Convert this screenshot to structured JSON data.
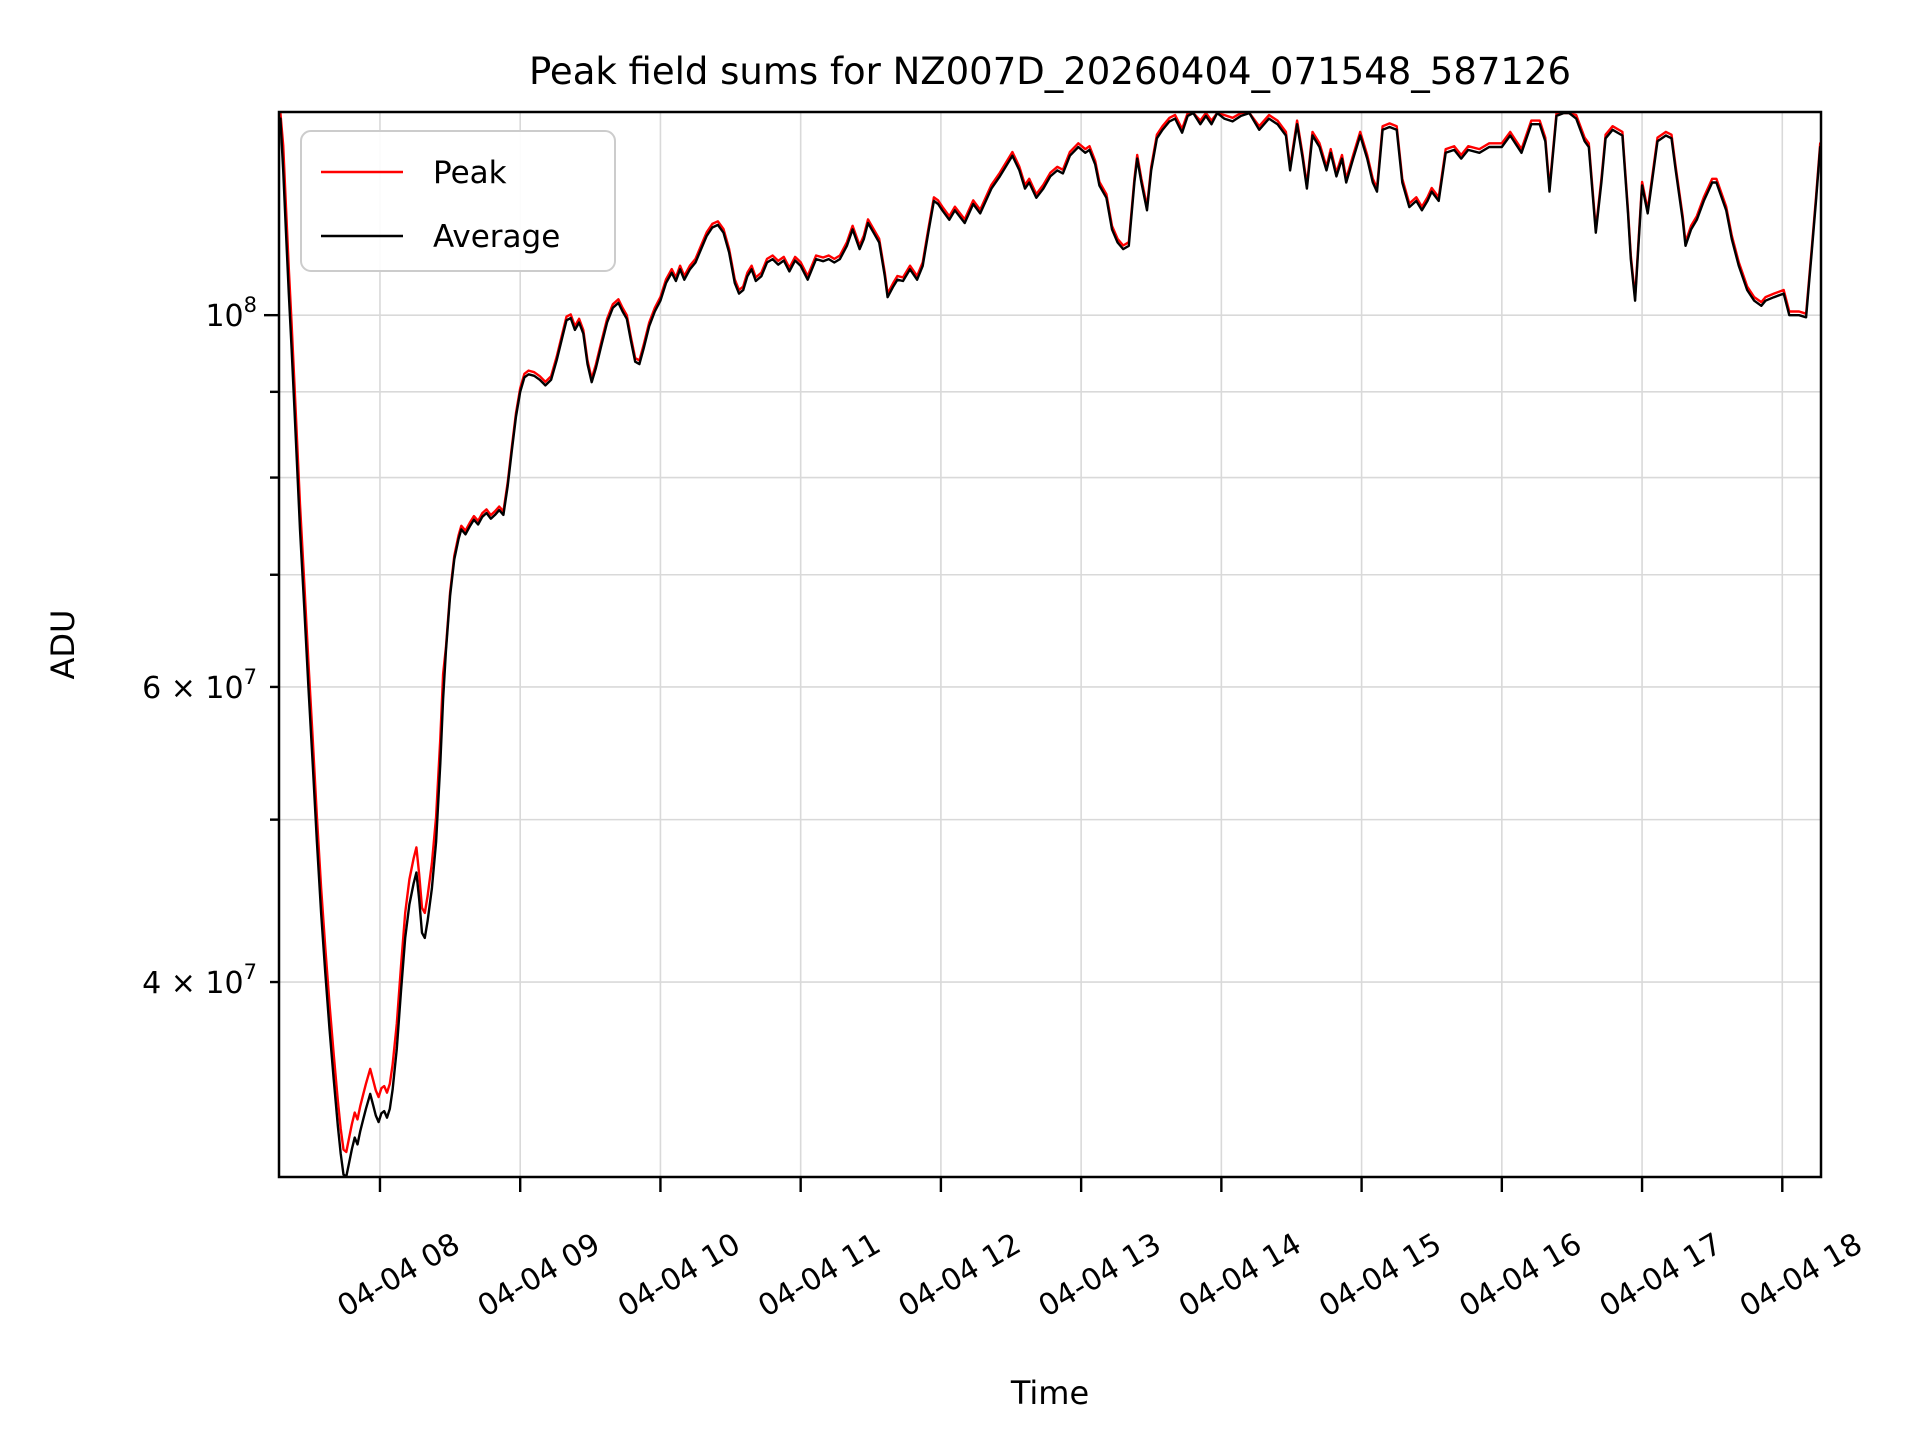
{
  "title": "Peak field sums for NZ007D_20260404_071548_587126",
  "axes": {
    "xlabel": "Time",
    "ylabel": "ADU",
    "x_ticks": [
      {
        "hour": 8,
        "label": "04-04 08"
      },
      {
        "hour": 9,
        "label": "04-04 09"
      },
      {
        "hour": 10,
        "label": "04-04 10"
      },
      {
        "hour": 11,
        "label": "04-04 11"
      },
      {
        "hour": 12,
        "label": "04-04 12"
      },
      {
        "hour": 13,
        "label": "04-04 13"
      },
      {
        "hour": 14,
        "label": "04-04 14"
      },
      {
        "hour": 15,
        "label": "04-04 15"
      },
      {
        "hour": 16,
        "label": "04-04 16"
      },
      {
        "hour": 17,
        "label": "04-04 17"
      },
      {
        "hour": 18,
        "label": "04-04 18"
      }
    ],
    "y_ticks": [
      {
        "value_millions": 100,
        "major": true,
        "label_base": "10",
        "label_exp": "8"
      },
      {
        "value_millions": 90,
        "major": false,
        "label_base": "",
        "label_exp": ""
      },
      {
        "value_millions": 80,
        "major": false,
        "label_base": "",
        "label_exp": ""
      },
      {
        "value_millions": 70,
        "major": false,
        "label_base": "",
        "label_exp": ""
      },
      {
        "value_millions": 60,
        "major": false,
        "label_base": "6 × 10",
        "label_exp": "7"
      },
      {
        "value_millions": 50,
        "major": false,
        "label_base": "",
        "label_exp": ""
      },
      {
        "value_millions": 40,
        "major": false,
        "label_base": "4 × 10",
        "label_exp": "7"
      }
    ]
  },
  "legend": {
    "entries": [
      {
        "label": "Peak",
        "color": "#ff0000"
      },
      {
        "label": "Average",
        "color": "#000000"
      }
    ]
  },
  "colors": {
    "grid": "#d9d9d9",
    "spine": "#000000",
    "background": "#ffffff",
    "peak_line": "#ff0000",
    "average_line": "#000000"
  },
  "chart_data": {
    "type": "line",
    "title": "Peak field sums for NZ007D_20260404_071548_587126",
    "xlabel": "Time",
    "ylabel": "ADU",
    "y_scale": "log",
    "x_unit": "decimal hours on 2026-04-04",
    "values_unit": "millions of ADU (1e6)",
    "xlim_hours": [
      7.28,
      18.276
    ],
    "ylim_adu": [
      30600000,
      132200000
    ],
    "grid": "both, light gray",
    "legend_position": "upper left",
    "series": [
      {
        "name": "Peak",
        "color": "#ff0000",
        "derivation": "Equals Average scaled by factor_default; scaled by factor_dip during the morning minimum where the red line is visible beside the black one",
        "factor_default": 1.005,
        "factor_dip": 1.035,
        "dip_range_hours": [
          7.29,
          8.45
        ]
      },
      {
        "name": "Average",
        "color": "#000000",
        "points_t_hours_v_millions": [
          [
            7.29,
            131
          ],
          [
            7.31,
            122
          ],
          [
            7.33,
            112
          ],
          [
            7.35,
            103
          ],
          [
            7.37,
            95.5
          ],
          [
            7.39,
            88
          ],
          [
            7.41,
            81
          ],
          [
            7.43,
            74.5
          ],
          [
            7.46,
            67
          ],
          [
            7.49,
            60
          ],
          [
            7.52,
            54
          ],
          [
            7.55,
            48.5
          ],
          [
            7.58,
            44
          ],
          [
            7.61,
            40.5
          ],
          [
            7.64,
            37.5
          ],
          [
            7.67,
            35
          ],
          [
            7.7,
            32.8
          ],
          [
            7.72,
            31.6
          ],
          [
            7.74,
            30.7
          ],
          [
            7.76,
            30.6
          ],
          [
            7.78,
            31.2
          ],
          [
            7.8,
            31.8
          ],
          [
            7.82,
            32.3
          ],
          [
            7.84,
            32
          ],
          [
            7.86,
            32.6
          ],
          [
            7.88,
            33.1
          ],
          [
            7.9,
            33.6
          ],
          [
            7.93,
            34.3
          ],
          [
            7.95,
            33.8
          ],
          [
            7.97,
            33.3
          ],
          [
            7.99,
            33
          ],
          [
            8.01,
            33.4
          ],
          [
            8.03,
            33.5
          ],
          [
            8.05,
            33.2
          ],
          [
            8.07,
            33.6
          ],
          [
            8.09,
            34.5
          ],
          [
            8.12,
            36.5
          ],
          [
            8.15,
            39.5
          ],
          [
            8.18,
            42.5
          ],
          [
            8.21,
            44.5
          ],
          [
            8.24,
            45.8
          ],
          [
            8.26,
            46.5
          ],
          [
            8.28,
            44.8
          ],
          [
            8.3,
            42.8
          ],
          [
            8.32,
            42.5
          ],
          [
            8.34,
            43.5
          ],
          [
            8.37,
            45.5
          ],
          [
            8.4,
            48.5
          ],
          [
            8.43,
            54
          ],
          [
            8.45,
            59
          ],
          [
            8.47,
            63
          ],
          [
            8.5,
            68
          ],
          [
            8.53,
            71.5
          ],
          [
            8.56,
            73.5
          ],
          [
            8.58,
            74.5
          ],
          [
            8.61,
            74
          ],
          [
            8.64,
            74.8
          ],
          [
            8.67,
            75.5
          ],
          [
            8.7,
            75
          ],
          [
            8.73,
            75.8
          ],
          [
            8.76,
            76.2
          ],
          [
            8.79,
            75.6
          ],
          [
            8.82,
            76
          ],
          [
            8.85,
            76.5
          ],
          [
            8.88,
            76
          ],
          [
            8.91,
            79
          ],
          [
            8.94,
            83
          ],
          [
            8.97,
            87
          ],
          [
            9,
            90
          ],
          [
            9.03,
            91.8
          ],
          [
            9.06,
            92.2
          ],
          [
            9.1,
            92
          ],
          [
            9.14,
            91.5
          ],
          [
            9.18,
            90.8
          ],
          [
            9.22,
            91.5
          ],
          [
            9.26,
            94
          ],
          [
            9.3,
            97
          ],
          [
            9.33,
            99.3
          ],
          [
            9.36,
            99.6
          ],
          [
            9.39,
            98
          ],
          [
            9.42,
            99
          ],
          [
            9.45,
            97.5
          ],
          [
            9.48,
            93.5
          ],
          [
            9.51,
            91.2
          ],
          [
            9.54,
            93
          ],
          [
            9.58,
            96
          ],
          [
            9.62,
            99
          ],
          [
            9.66,
            101
          ],
          [
            9.7,
            101.7
          ],
          [
            9.73,
            100.5
          ],
          [
            9.76,
            99.5
          ],
          [
            9.79,
            96.5
          ],
          [
            9.82,
            93.8
          ],
          [
            9.85,
            93.5
          ],
          [
            9.88,
            95.5
          ],
          [
            9.92,
            98.5
          ],
          [
            9.96,
            100.5
          ],
          [
            10,
            102
          ],
          [
            10.04,
            104.5
          ],
          [
            10.08,
            106
          ],
          [
            10.11,
            104.8
          ],
          [
            10.14,
            106.5
          ],
          [
            10.17,
            105
          ],
          [
            10.21,
            106.5
          ],
          [
            10.25,
            107.5
          ],
          [
            10.29,
            109.5
          ],
          [
            10.33,
            111.5
          ],
          [
            10.37,
            112.8
          ],
          [
            10.41,
            113.2
          ],
          [
            10.45,
            112
          ],
          [
            10.49,
            109
          ],
          [
            10.53,
            104.5
          ],
          [
            10.56,
            103
          ],
          [
            10.59,
            103.5
          ],
          [
            10.62,
            105.5
          ],
          [
            10.65,
            106.5
          ],
          [
            10.68,
            104.8
          ],
          [
            10.72,
            105.5
          ],
          [
            10.76,
            107.5
          ],
          [
            10.8,
            108
          ],
          [
            10.84,
            107.2
          ],
          [
            10.88,
            107.8
          ],
          [
            10.92,
            106.2
          ],
          [
            10.96,
            107.8
          ],
          [
            11,
            107
          ],
          [
            11.05,
            105
          ],
          [
            11.11,
            108
          ],
          [
            11.16,
            107.7
          ],
          [
            11.2,
            108
          ],
          [
            11.24,
            107.5
          ],
          [
            11.28,
            108
          ],
          [
            11.33,
            110
          ],
          [
            11.37,
            112.5
          ],
          [
            11.42,
            109.5
          ],
          [
            11.45,
            111
          ],
          [
            11.48,
            113.5
          ],
          [
            11.52,
            112
          ],
          [
            11.56,
            110.5
          ],
          [
            11.6,
            105.5
          ],
          [
            11.62,
            102.5
          ],
          [
            11.66,
            104
          ],
          [
            11.69,
            105
          ],
          [
            11.73,
            104.8
          ],
          [
            11.78,
            106.5
          ],
          [
            11.83,
            105
          ],
          [
            11.87,
            107
          ],
          [
            11.91,
            112
          ],
          [
            11.95,
            117
          ],
          [
            11.98,
            116.5
          ],
          [
            12.01,
            115.5
          ],
          [
            12.06,
            114
          ],
          [
            12.1,
            115.5
          ],
          [
            12.17,
            113.5
          ],
          [
            12.23,
            116.5
          ],
          [
            12.28,
            115
          ],
          [
            12.36,
            119
          ],
          [
            12.42,
            121
          ],
          [
            12.51,
            124.5
          ],
          [
            12.56,
            122
          ],
          [
            12.6,
            119
          ],
          [
            12.63,
            120
          ],
          [
            12.68,
            117.5
          ],
          [
            12.73,
            119
          ],
          [
            12.78,
            121
          ],
          [
            12.83,
            122
          ],
          [
            12.87,
            121.5
          ],
          [
            12.92,
            124.5
          ],
          [
            12.98,
            126
          ],
          [
            13.03,
            125
          ],
          [
            13.06,
            125.5
          ],
          [
            13.1,
            123
          ],
          [
            13.13,
            119.5
          ],
          [
            13.18,
            117.5
          ],
          [
            13.22,
            112.5
          ],
          [
            13.26,
            110.5
          ],
          [
            13.3,
            109.5
          ],
          [
            13.34,
            110
          ],
          [
            13.38,
            120
          ],
          [
            13.4,
            124
          ],
          [
            13.43,
            120
          ],
          [
            13.47,
            115.5
          ],
          [
            13.5,
            122
          ],
          [
            13.54,
            127.5
          ],
          [
            13.58,
            129
          ],
          [
            13.63,
            130.5
          ],
          [
            13.67,
            131
          ],
          [
            13.72,
            128.5
          ],
          [
            13.76,
            131.5
          ],
          [
            13.8,
            132
          ],
          [
            13.85,
            130
          ],
          [
            13.89,
            131.5
          ],
          [
            13.93,
            130
          ],
          [
            13.97,
            132
          ],
          [
            14.02,
            131
          ],
          [
            14.08,
            130.5
          ],
          [
            14.14,
            131.5
          ],
          [
            14.2,
            132
          ],
          [
            14.27,
            129
          ],
          [
            14.34,
            131
          ],
          [
            14.4,
            130
          ],
          [
            14.46,
            128
          ],
          [
            14.49,
            122
          ],
          [
            14.54,
            130
          ],
          [
            14.58,
            124
          ],
          [
            14.61,
            119
          ],
          [
            14.65,
            128
          ],
          [
            14.7,
            126
          ],
          [
            14.75,
            122
          ],
          [
            14.78,
            125
          ],
          [
            14.82,
            121
          ],
          [
            14.86,
            124
          ],
          [
            14.89,
            120
          ],
          [
            14.94,
            124
          ],
          [
            14.99,
            128
          ],
          [
            15.04,
            124
          ],
          [
            15.08,
            120
          ],
          [
            15.11,
            118.5
          ],
          [
            15.15,
            129
          ],
          [
            15.2,
            129.5
          ],
          [
            15.25,
            129
          ],
          [
            15.29,
            120
          ],
          [
            15.34,
            116
          ],
          [
            15.39,
            117
          ],
          [
            15.43,
            115.5
          ],
          [
            15.47,
            117
          ],
          [
            15.5,
            118.5
          ],
          [
            15.55,
            117
          ],
          [
            15.6,
            125
          ],
          [
            15.66,
            125.5
          ],
          [
            15.71,
            124
          ],
          [
            15.76,
            125.5
          ],
          [
            15.84,
            125
          ],
          [
            15.91,
            126
          ],
          [
            16,
            126
          ],
          [
            16.06,
            128
          ],
          [
            16.14,
            125
          ],
          [
            16.21,
            130
          ],
          [
            16.27,
            130
          ],
          [
            16.31,
            127
          ],
          [
            16.34,
            118.5
          ],
          [
            16.39,
            131.5
          ],
          [
            16.44,
            132
          ],
          [
            16.48,
            132
          ],
          [
            16.53,
            131
          ],
          [
            16.59,
            127
          ],
          [
            16.62,
            126
          ],
          [
            16.67,
            112
          ],
          [
            16.71,
            120
          ],
          [
            16.74,
            127.5
          ],
          [
            16.79,
            129
          ],
          [
            16.86,
            128
          ],
          [
            16.9,
            115
          ],
          [
            16.92,
            108
          ],
          [
            16.95,
            102
          ],
          [
            17,
            119.5
          ],
          [
            17.04,
            115
          ],
          [
            17.11,
            127
          ],
          [
            17.17,
            128
          ],
          [
            17.21,
            127.5
          ],
          [
            17.24,
            122
          ],
          [
            17.29,
            114
          ],
          [
            17.31,
            110
          ],
          [
            17.35,
            112.5
          ],
          [
            17.39,
            114
          ],
          [
            17.44,
            117
          ],
          [
            17.5,
            120
          ],
          [
            17.53,
            120
          ],
          [
            17.6,
            115.5
          ],
          [
            17.64,
            111
          ],
          [
            17.69,
            107
          ],
          [
            17.75,
            103.5
          ],
          [
            17.8,
            102
          ],
          [
            17.85,
            101.3
          ],
          [
            17.88,
            102
          ],
          [
            17.94,
            102.5
          ],
          [
            18.01,
            103
          ],
          [
            18.05,
            100
          ],
          [
            18.12,
            100
          ],
          [
            18.17,
            99.7
          ],
          [
            18.21,
            109
          ],
          [
            18.24,
            117
          ],
          [
            18.27,
            126
          ]
        ]
      }
    ]
  }
}
